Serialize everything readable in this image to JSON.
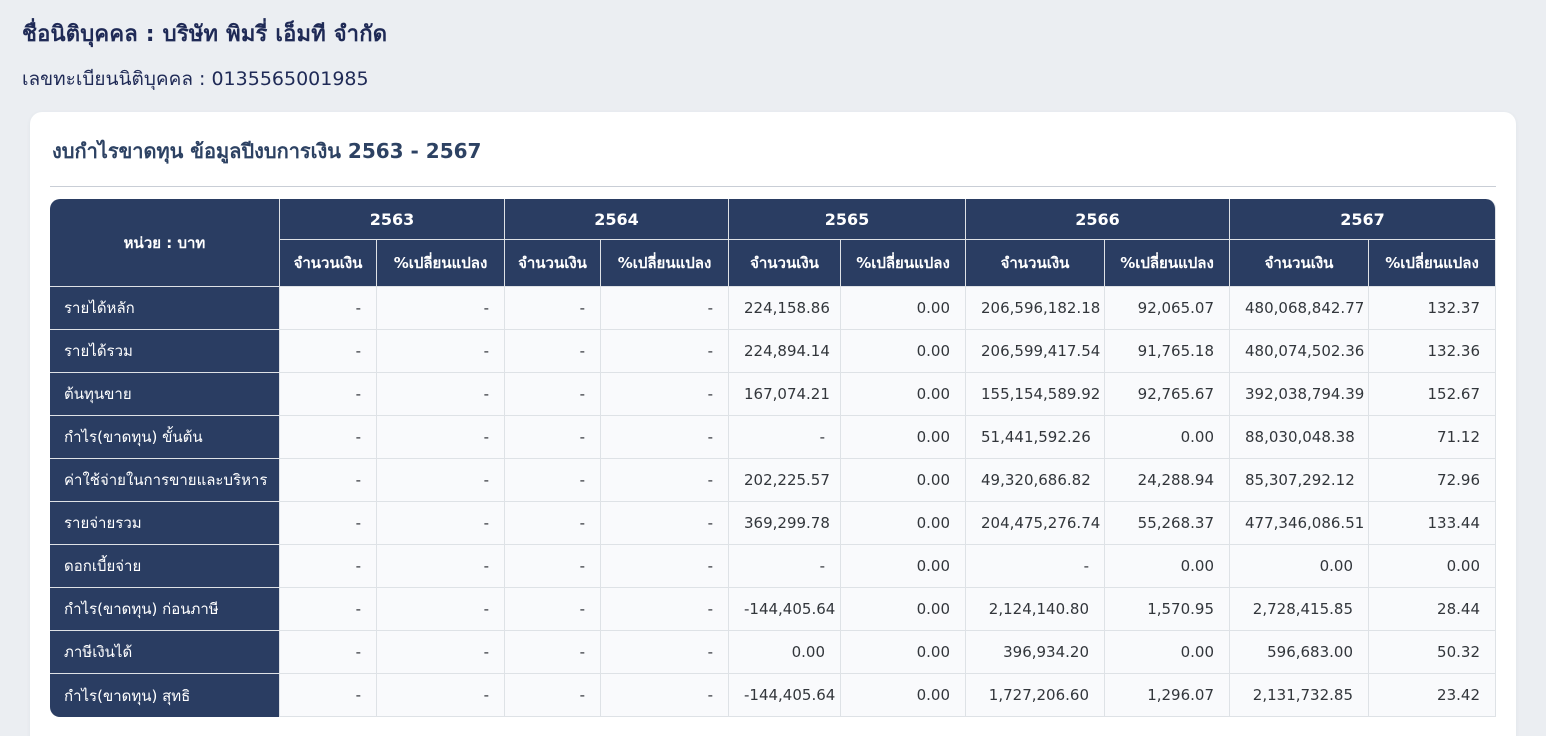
{
  "header": {
    "company_line": "ชื่อนิติบุคคล : บริษัท พิมรี่ เอ็มที จำกัด",
    "registration_line": "เลขทะเบียนนิติบุคคล : 0135565001985"
  },
  "card": {
    "title": "งบกำไรขาดทุน ข้อมูลปีงบการเงิน 2563 - 2567"
  },
  "table": {
    "unit_header": "หน่วย : บาท",
    "years": [
      "2563",
      "2564",
      "2565",
      "2566",
      "2567"
    ],
    "sub_headers": [
      "จำนวนเงิน",
      "%เปลี่ยนแปลง"
    ],
    "rows": [
      {
        "label": "รายได้หลัก",
        "values": [
          "-",
          "-",
          "-",
          "-",
          "224,158.86",
          "0.00",
          "206,596,182.18",
          "92,065.07",
          "480,068,842.77",
          "132.37"
        ]
      },
      {
        "label": "รายได้รวม",
        "values": [
          "-",
          "-",
          "-",
          "-",
          "224,894.14",
          "0.00",
          "206,599,417.54",
          "91,765.18",
          "480,074,502.36",
          "132.36"
        ]
      },
      {
        "label": "ต้นทุนขาย",
        "values": [
          "-",
          "-",
          "-",
          "-",
          "167,074.21",
          "0.00",
          "155,154,589.92",
          "92,765.67",
          "392,038,794.39",
          "152.67"
        ]
      },
      {
        "label": "กำไร(ขาดทุน) ขั้นต้น",
        "values": [
          "-",
          "-",
          "-",
          "-",
          "-",
          "0.00",
          "51,441,592.26",
          "0.00",
          "88,030,048.38",
          "71.12"
        ]
      },
      {
        "label": "ค่าใช้จ่ายในการขายและบริหาร",
        "values": [
          "-",
          "-",
          "-",
          "-",
          "202,225.57",
          "0.00",
          "49,320,686.82",
          "24,288.94",
          "85,307,292.12",
          "72.96"
        ]
      },
      {
        "label": "รายจ่ายรวม",
        "values": [
          "-",
          "-",
          "-",
          "-",
          "369,299.78",
          "0.00",
          "204,475,276.74",
          "55,268.37",
          "477,346,086.51",
          "133.44"
        ]
      },
      {
        "label": "ดอกเบี้ยจ่าย",
        "values": [
          "-",
          "-",
          "-",
          "-",
          "-",
          "0.00",
          "-",
          "0.00",
          "0.00",
          "0.00"
        ]
      },
      {
        "label": "กำไร(ขาดทุน) ก่อนภาษี",
        "values": [
          "-",
          "-",
          "-",
          "-",
          "-144,405.64",
          "0.00",
          "2,124,140.80",
          "1,570.95",
          "2,728,415.85",
          "28.44"
        ]
      },
      {
        "label": "ภาษีเงินได้",
        "values": [
          "-",
          "-",
          "-",
          "-",
          "0.00",
          "0.00",
          "396,934.20",
          "0.00",
          "596,683.00",
          "50.32"
        ]
      },
      {
        "label": "กำไร(ขาดทุน) สุทธิ",
        "values": [
          "-",
          "-",
          "-",
          "-",
          "-144,405.64",
          "0.00",
          "1,727,206.60",
          "1,296.07",
          "2,131,732.85",
          "23.42"
        ]
      }
    ]
  },
  "colors": {
    "navy_header": "#2a3d62",
    "page_background": "#ebeef2",
    "cell_background": "#f9fafc",
    "border": "#dee2e6",
    "header_text": "#1f2a56",
    "title_text": "#2d4263"
  }
}
